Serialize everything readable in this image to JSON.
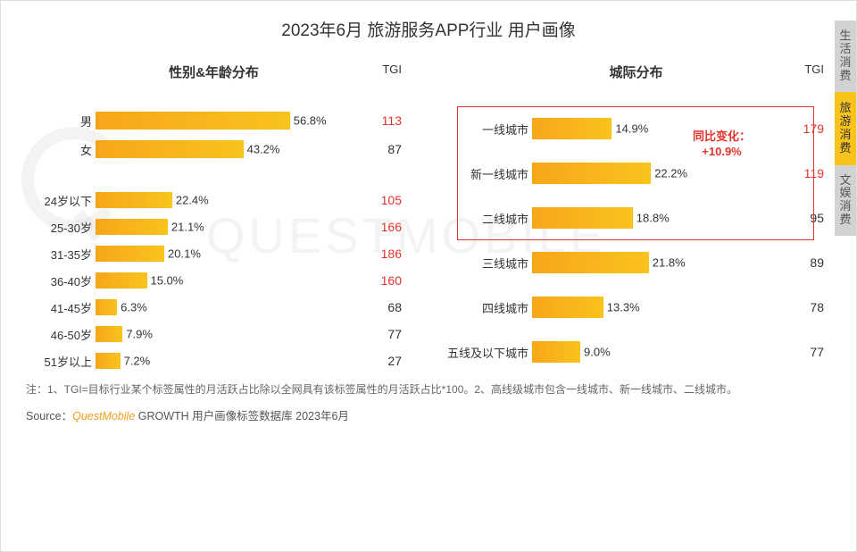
{
  "title": "2023年6月 旅游服务APP行业 用户画像",
  "left_chart": {
    "subtitle": "性别&年龄分布",
    "tgi_label": "TGI",
    "max_pct": 60,
    "gender": [
      {
        "label": "男",
        "pct": "56.8%",
        "pct_num": 56.8,
        "tgi": "113",
        "tgi_high": true
      },
      {
        "label": "女",
        "pct": "43.2%",
        "pct_num": 43.2,
        "tgi": "87",
        "tgi_high": false
      }
    ],
    "age": [
      {
        "label": "24岁以下",
        "pct": "22.4%",
        "pct_num": 22.4,
        "tgi": "105",
        "tgi_high": true
      },
      {
        "label": "25-30岁",
        "pct": "21.1%",
        "pct_num": 21.1,
        "tgi": "166",
        "tgi_high": true
      },
      {
        "label": "31-35岁",
        "pct": "20.1%",
        "pct_num": 20.1,
        "tgi": "186",
        "tgi_high": true
      },
      {
        "label": "36-40岁",
        "pct": "15.0%",
        "pct_num": 15.0,
        "tgi": "160",
        "tgi_high": true
      },
      {
        "label": "41-45岁",
        "pct": "6.3%",
        "pct_num": 6.3,
        "tgi": "68",
        "tgi_high": false
      },
      {
        "label": "46-50岁",
        "pct": "7.9%",
        "pct_num": 7.9,
        "tgi": "77",
        "tgi_high": false
      },
      {
        "label": "51岁以上",
        "pct": "7.2%",
        "pct_num": 7.2,
        "tgi": "27",
        "tgi_high": false
      }
    ]
  },
  "right_chart": {
    "subtitle": "城际分布",
    "tgi_label": "TGI",
    "max_pct": 25,
    "cities": [
      {
        "label": "一线城市",
        "pct": "14.9%",
        "pct_num": 14.9,
        "tgi": "179",
        "tgi_high": true
      },
      {
        "label": "新一线城市",
        "pct": "22.2%",
        "pct_num": 22.2,
        "tgi": "119",
        "tgi_high": true
      },
      {
        "label": "二线城市",
        "pct": "18.8%",
        "pct_num": 18.8,
        "tgi": "95",
        "tgi_high": false
      },
      {
        "label": "三线城市",
        "pct": "21.8%",
        "pct_num": 21.8,
        "tgi": "89",
        "tgi_high": false
      },
      {
        "label": "四线城市",
        "pct": "13.3%",
        "pct_num": 13.3,
        "tgi": "78",
        "tgi_high": false
      },
      {
        "label": "五线及以下城市",
        "pct": "9.0%",
        "pct_num": 9.0,
        "tgi": "77",
        "tgi_high": false
      }
    ],
    "annotation": {
      "line1": "同比变化：",
      "line2": "+10.9%"
    }
  },
  "colors": {
    "bar_start": "#f7a61b",
    "bar_end": "#f9c31c",
    "tgi_high": "#e4342a",
    "tgi_normal": "#333333",
    "highlight_border": "#e4342a"
  },
  "note": "注：1、TGI=目标行业某个标签属性的月活跃占比除以全网具有该标签属性的月活跃占比*100。2、高线级城市包含一线城市、新一线城市、二线城市。",
  "source_prefix": "Source：",
  "source_brand": "QuestMobile",
  "source_rest": " GROWTH 用户画像标签数据库 2023年6月",
  "sidetabs": [
    {
      "label": "生活消费",
      "active": false
    },
    {
      "label": "旅游消费",
      "active": true
    },
    {
      "label": "文娱消费",
      "active": false
    }
  ],
  "watermark": "QUESTMOBILE"
}
